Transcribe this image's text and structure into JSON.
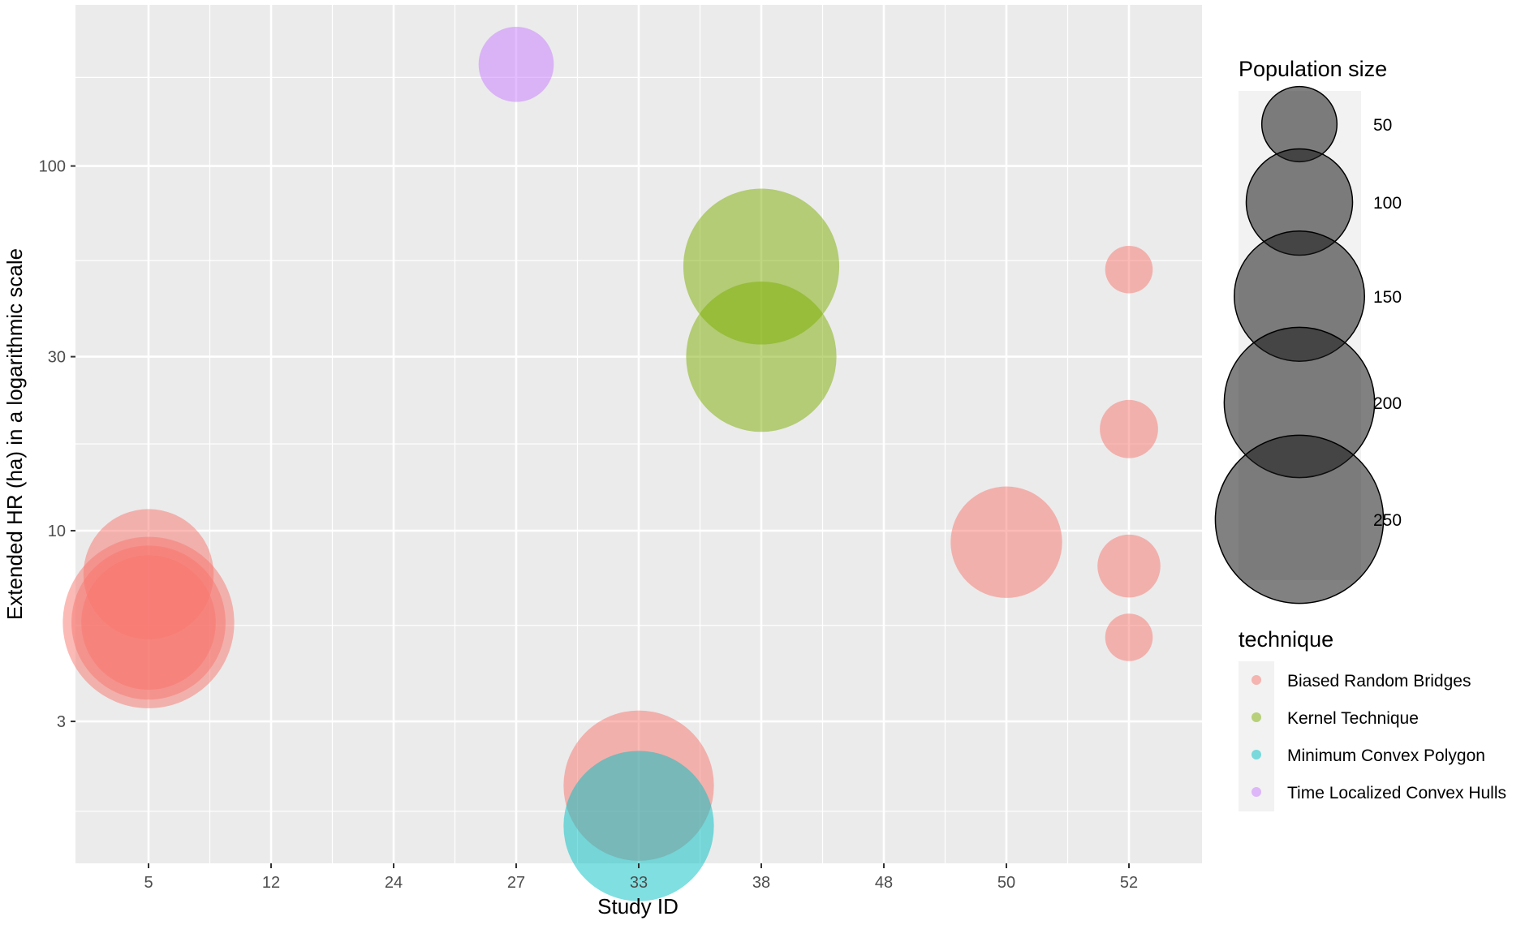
{
  "chart_data": {
    "type": "scatter",
    "xlabel": "Study ID",
    "ylabel": "Extended HR (ha) in a logarithmic scale",
    "x_categories": [
      "5",
      "12",
      "24",
      "27",
      "33",
      "38",
      "48",
      "50",
      "52"
    ],
    "y_scale": "log10",
    "ylim": [
      1.45,
      230
    ],
    "y_ticks": [
      3,
      10,
      30,
      100
    ],
    "grid": true,
    "colors": {
      "panel": "#ebebeb",
      "grid": "#ffffff",
      "Biased Random Bridges": "#F8766D",
      "Kernel Technique": "#7CAE00",
      "Minimum Convex Polygon": "#00BFC4",
      "Time Localized Convex Hulls": "#C77CFF",
      "size_legend": "#1a1a1a"
    },
    "series": [
      {
        "name": "Biased Random Bridges",
        "points": [
          {
            "x": "5",
            "y": 7.6,
            "size": 150
          },
          {
            "x": "5",
            "y": 5.6,
            "size": 260
          },
          {
            "x": "5",
            "y": 5.6,
            "size": 210
          },
          {
            "x": "5",
            "y": 5.6,
            "size": 160
          },
          {
            "x": "33",
            "y": 2.0,
            "size": 200
          },
          {
            "x": "50",
            "y": 9.3,
            "size": 110
          },
          {
            "x": "52",
            "y": 52,
            "size": 20
          },
          {
            "x": "52",
            "y": 19,
            "size": 30
          },
          {
            "x": "52",
            "y": 8.0,
            "size": 35
          },
          {
            "x": "52",
            "y": 5.1,
            "size": 20
          }
        ]
      },
      {
        "name": "Kernel Technique",
        "points": [
          {
            "x": "38",
            "y": 53,
            "size": 215
          },
          {
            "x": "38",
            "y": 30,
            "size": 200
          }
        ]
      },
      {
        "name": "Minimum Convex Polygon",
        "points": [
          {
            "x": "33",
            "y": 1.55,
            "size": 200
          }
        ]
      },
      {
        "name": "Time Localized Convex Hulls",
        "points": [
          {
            "x": "27",
            "y": 190,
            "size": 50
          }
        ]
      }
    ],
    "legends": {
      "size": {
        "title": "Population size",
        "labels": [
          "50",
          "100",
          "150",
          "200",
          "250"
        ],
        "values": [
          50,
          100,
          150,
          200,
          250
        ]
      },
      "color": {
        "title": "technique",
        "labels": [
          "Biased Random Bridges",
          "Kernel Technique",
          "Minimum Convex Polygon",
          "Time Localized Convex Hulls"
        ]
      }
    }
  }
}
